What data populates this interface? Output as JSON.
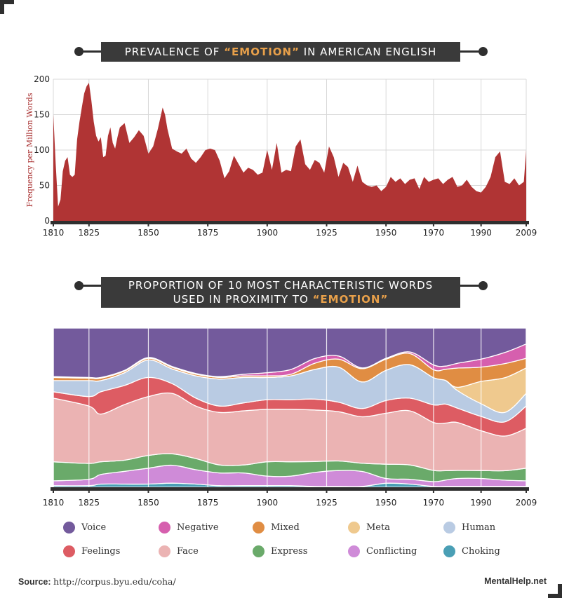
{
  "charts_title": {
    "area_prefix": "PREVALENCE OF ",
    "area_highlight": "“EMOTION”",
    "area_suffix": " IN AMERICAN ENGLISH",
    "stack_line1": "PROPORTION OF 10 MOST CHARACTERISTIC WORDS",
    "stack_line2_prefix": "USED IN PROXIMITY TO ",
    "stack_line2_highlight": "“EMOTION”"
  },
  "colors": {
    "area_fill": "#b03434",
    "banner_bg": "#3a3a3a",
    "highlight": "#e8a04a",
    "grid": "#d8d8d8",
    "axis": "#2f2f2f"
  },
  "footer": {
    "source_label": "Source:",
    "source_url": "http://corpus.byu.edu/coha/",
    "brand": "MentalHelp.net"
  },
  "chart_data": [
    {
      "type": "area",
      "ylabel": "Frequency per Million Words",
      "xlim": [
        1810,
        2009
      ],
      "ylim": [
        0,
        200
      ],
      "yticks": [
        0,
        50,
        100,
        150,
        200
      ],
      "xticks": [
        "1810",
        "1825",
        "1850",
        "1875",
        "1900",
        "1925",
        "1950",
        "1970",
        "1990",
        "2009"
      ],
      "xtick_values": [
        1810,
        1825,
        1850,
        1875,
        1900,
        1925,
        1950,
        1970,
        1990,
        2009
      ],
      "grid": true,
      "x": [
        1810,
        1811,
        1812,
        1813,
        1814,
        1815,
        1816,
        1817,
        1818,
        1819,
        1820,
        1821,
        1822,
        1823,
        1824,
        1825,
        1826,
        1827,
        1828,
        1829,
        1830,
        1831,
        1832,
        1833,
        1834,
        1835,
        1836,
        1837,
        1838,
        1840,
        1842,
        1844,
        1846,
        1848,
        1850,
        1852,
        1854,
        1856,
        1857,
        1858,
        1860,
        1862,
        1864,
        1866,
        1868,
        1870,
        1872,
        1874,
        1876,
        1878,
        1880,
        1882,
        1884,
        1886,
        1888,
        1890,
        1892,
        1894,
        1896,
        1898,
        1900,
        1902,
        1904,
        1906,
        1908,
        1910,
        1912,
        1914,
        1916,
        1918,
        1920,
        1922,
        1924,
        1926,
        1928,
        1930,
        1932,
        1934,
        1936,
        1938,
        1940,
        1942,
        1944,
        1946,
        1948,
        1950,
        1952,
        1954,
        1956,
        1958,
        1960,
        1962,
        1964,
        1966,
        1968,
        1970,
        1972,
        1974,
        1976,
        1978,
        1980,
        1982,
        1984,
        1986,
        1988,
        1990,
        1992,
        1994,
        1996,
        1998,
        2000,
        2002,
        2004,
        2006,
        2008,
        2009
      ],
      "values": [
        150,
        80,
        20,
        30,
        70,
        85,
        90,
        65,
        62,
        65,
        115,
        140,
        160,
        180,
        190,
        195,
        170,
        140,
        120,
        112,
        118,
        90,
        92,
        120,
        132,
        110,
        102,
        118,
        132,
        138,
        110,
        118,
        128,
        120,
        95,
        105,
        130,
        160,
        150,
        130,
        102,
        98,
        95,
        102,
        88,
        82,
        90,
        100,
        102,
        100,
        85,
        60,
        70,
        92,
        80,
        68,
        75,
        72,
        65,
        68,
        100,
        72,
        110,
        68,
        72,
        70,
        105,
        115,
        80,
        72,
        86,
        82,
        68,
        105,
        90,
        62,
        82,
        76,
        55,
        78,
        55,
        50,
        48,
        50,
        42,
        48,
        62,
        55,
        60,
        52,
        58,
        60,
        45,
        62,
        55,
        58,
        60,
        52,
        58,
        62,
        48,
        50,
        58,
        48,
        42,
        40,
        48,
        62,
        90,
        98,
        55,
        52,
        60,
        50,
        55,
        100
      ]
    },
    {
      "type": "area",
      "stacked": true,
      "normalized": true,
      "xlim": [
        1810,
        2009
      ],
      "ylim": [
        0,
        1
      ],
      "xticks": [
        "1810",
        "1825",
        "1850",
        "1875",
        "1900",
        "1925",
        "1950",
        "1970",
        "1990",
        "2009"
      ],
      "xtick_values": [
        1810,
        1825,
        1850,
        1875,
        1900,
        1925,
        1950,
        1970,
        1990,
        2009
      ],
      "x": [
        1810,
        1825,
        1830,
        1840,
        1850,
        1860,
        1870,
        1880,
        1890,
        1900,
        1910,
        1920,
        1930,
        1940,
        1950,
        1960,
        1970,
        1975,
        1980,
        1990,
        2000,
        2009
      ],
      "series": [
        {
          "name": "Choking",
          "color": "#4a9fb5",
          "values": [
            0.01,
            0.01,
            0.02,
            0.02,
            0.02,
            0.025,
            0.02,
            0.01,
            0.01,
            0.01,
            0.01,
            0.005,
            0.005,
            0.005,
            0.025,
            0.02,
            0.005,
            0.005,
            0.005,
            0.005,
            0.005,
            0.005
          ]
        },
        {
          "name": "Conflicting",
          "color": "#cf8bd8",
          "values": [
            0.03,
            0.04,
            0.06,
            0.08,
            0.1,
            0.11,
            0.09,
            0.08,
            0.08,
            0.06,
            0.06,
            0.09,
            0.1,
            0.09,
            0.03,
            0.03,
            0.03,
            0.04,
            0.05,
            0.05,
            0.04,
            0.035
          ]
        },
        {
          "name": "Express",
          "color": "#6aaa6a",
          "values": [
            0.12,
            0.1,
            0.08,
            0.07,
            0.08,
            0.07,
            0.07,
            0.05,
            0.05,
            0.09,
            0.09,
            0.07,
            0.06,
            0.05,
            0.09,
            0.09,
            0.07,
            0.06,
            0.05,
            0.05,
            0.06,
            0.08
          ]
        },
        {
          "name": "Face",
          "color": "#ebb3b3",
          "values": [
            0.4,
            0.36,
            0.3,
            0.35,
            0.37,
            0.37,
            0.33,
            0.33,
            0.34,
            0.33,
            0.33,
            0.33,
            0.31,
            0.28,
            0.32,
            0.34,
            0.3,
            0.3,
            0.3,
            0.25,
            0.22,
            0.25
          ]
        },
        {
          "name": "Feelings",
          "color": "#dd5c63",
          "values": [
            0.04,
            0.06,
            0.14,
            0.12,
            0.12,
            0.06,
            0.05,
            0.04,
            0.05,
            0.06,
            0.06,
            0.07,
            0.06,
            0.05,
            0.08,
            0.08,
            0.11,
            0.12,
            0.09,
            0.09,
            0.09,
            0.14
          ]
        },
        {
          "name": "Human",
          "color": "#b9cbe3",
          "values": [
            0.07,
            0.1,
            0.07,
            0.08,
            0.11,
            0.09,
            0.14,
            0.17,
            0.16,
            0.14,
            0.15,
            0.19,
            0.22,
            0.16,
            0.19,
            0.21,
            0.17,
            0.15,
            0.11,
            0.08,
            0.06,
            0.08
          ]
        },
        {
          "name": "Meta",
          "color": "#efc98e",
          "values": [
            0.0,
            0.0,
            0.0,
            0.0,
            0.0,
            0.0,
            0.0,
            0.0,
            0.0,
            0.0,
            0.0,
            0.0,
            0.0,
            0.0,
            0.0,
            0.0,
            0.0,
            0.0,
            0.02,
            0.14,
            0.22,
            0.16
          ]
        },
        {
          "name": "Mixed",
          "color": "#e08d43",
          "values": [
            0.02,
            0.015,
            0.015,
            0.01,
            0.01,
            0.01,
            0.01,
            0.01,
            0.01,
            0.01,
            0.01,
            0.04,
            0.05,
            0.08,
            0.07,
            0.07,
            0.05,
            0.07,
            0.12,
            0.09,
            0.09,
            0.06
          ]
        },
        {
          "name": "Negative",
          "color": "#d65fae",
          "values": [
            0.005,
            0.005,
            0.005,
            0.005,
            0.005,
            0.005,
            0.005,
            0.005,
            0.01,
            0.02,
            0.03,
            0.03,
            0.02,
            0.005,
            0.005,
            0.01,
            0.03,
            0.02,
            0.03,
            0.05,
            0.07,
            0.09
          ]
        },
        {
          "name": "Voice",
          "color": "#735a9c",
          "values": [
            0.305,
            0.31,
            0.31,
            0.265,
            0.185,
            0.235,
            0.285,
            0.305,
            0.29,
            0.28,
            0.26,
            0.195,
            0.175,
            0.24,
            0.19,
            0.15,
            0.23,
            0.24,
            0.22,
            0.195,
            0.155,
            0.1
          ]
        }
      ]
    }
  ],
  "legend": [
    {
      "name": "Voice",
      "color": "#735a9c"
    },
    {
      "name": "Negative",
      "color": "#d65fae"
    },
    {
      "name": "Mixed",
      "color": "#e08d43"
    },
    {
      "name": "Meta",
      "color": "#efc98e"
    },
    {
      "name": "Human",
      "color": "#b9cbe3"
    },
    {
      "name": "Feelings",
      "color": "#dd5c63"
    },
    {
      "name": "Face",
      "color": "#ebb3b3"
    },
    {
      "name": "Express",
      "color": "#6aaa6a"
    },
    {
      "name": "Conflicting",
      "color": "#cf8bd8"
    },
    {
      "name": "Choking",
      "color": "#4a9fb5"
    }
  ]
}
